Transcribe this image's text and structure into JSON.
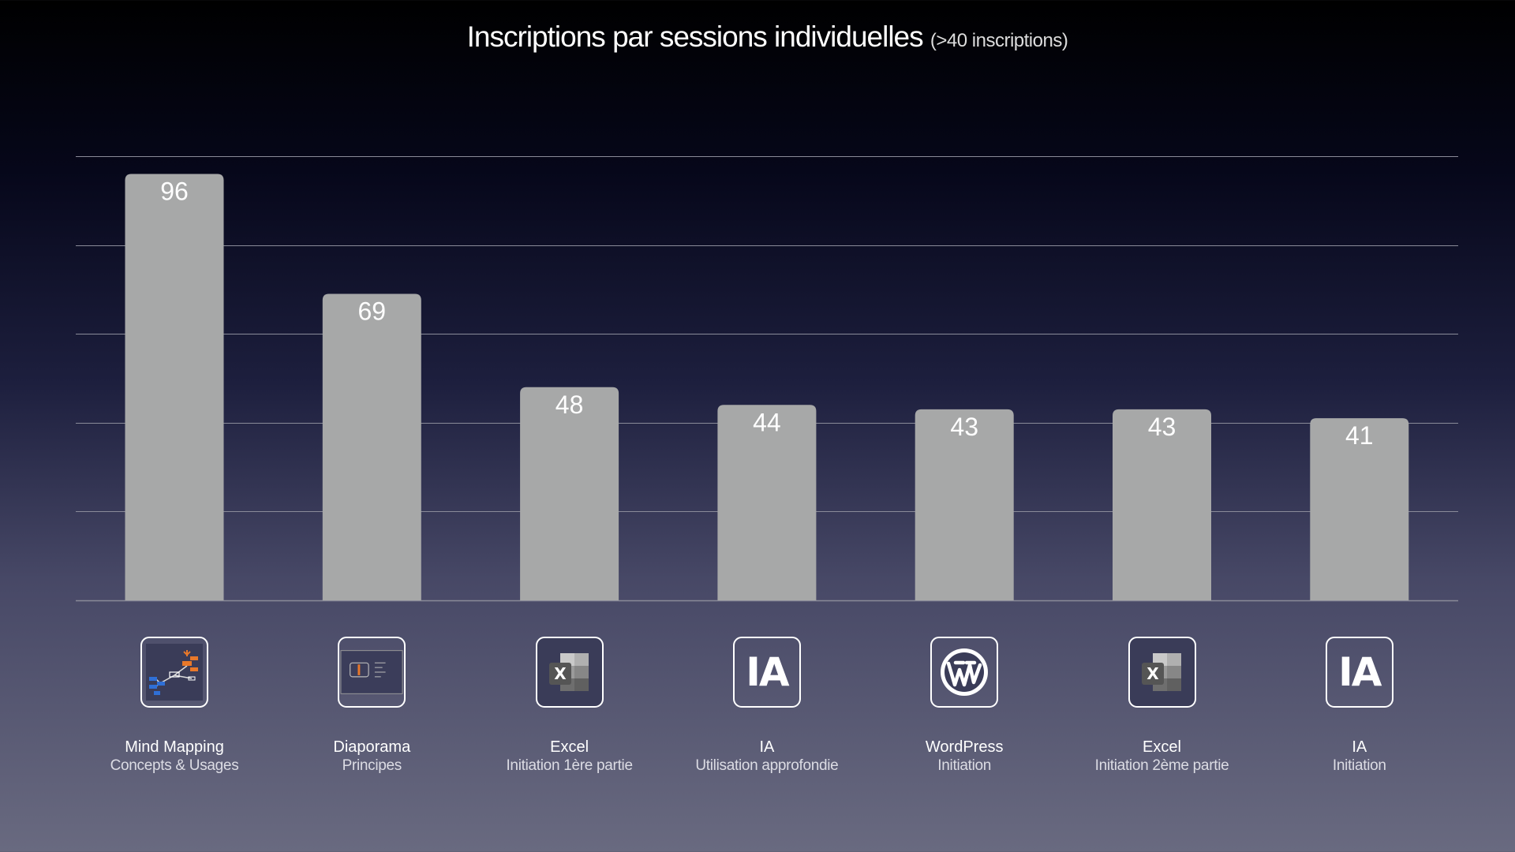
{
  "chart_data": {
    "type": "bar",
    "title": "Inscriptions par sessions individuelles",
    "subtitle": "(>40 inscriptions)",
    "categories": [
      {
        "name": "Mind Mapping",
        "sub": "Concepts & Usages",
        "icon": "mind-map-icon"
      },
      {
        "name": "Diaporama",
        "sub": "Principes",
        "icon": "presentation-icon"
      },
      {
        "name": "Excel",
        "sub": "Initiation 1ère partie",
        "icon": "excel-icon"
      },
      {
        "name": "IA",
        "sub": "Utilisation approfondie",
        "icon": "ia-icon",
        "icon_text": "IA"
      },
      {
        "name": "WordPress",
        "sub": "Initiation",
        "icon": "wordpress-icon"
      },
      {
        "name": "Excel",
        "sub": "Initiation 2ème partie",
        "icon": "excel-icon"
      },
      {
        "name": "IA",
        "sub": "Initiation",
        "icon": "ia-icon",
        "icon_text": "IA"
      }
    ],
    "values": [
      96,
      69,
      48,
      44,
      43,
      43,
      41
    ],
    "ylim": [
      0,
      100
    ],
    "grid": true,
    "bar_color": "#a7a8a8",
    "gridline_color": "#8a8b99"
  }
}
